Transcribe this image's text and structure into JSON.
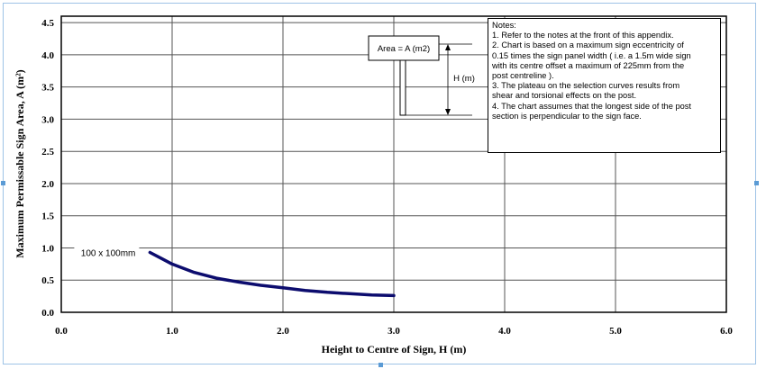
{
  "chart_data": {
    "type": "line",
    "xlabel": "Height to Centre of Sign, H (m)",
    "ylabel": "Maximum Permissable Sign Area, A (m²)",
    "xlim": [
      0,
      6
    ],
    "ylim": [
      0,
      4.6
    ],
    "x_ticks": [
      "0.0",
      "1.0",
      "2.0",
      "3.0",
      "4.0",
      "5.0",
      "6.0"
    ],
    "y_ticks": [
      "0.0",
      "0.5",
      "1.0",
      "1.5",
      "2.0",
      "2.5",
      "3.0",
      "3.5",
      "4.0",
      "4.5"
    ],
    "grid": true,
    "series": [
      {
        "name": "100 x 100mm",
        "color": "#0c0c6e",
        "x": [
          0.8,
          0.9,
          1.0,
          1.2,
          1.4,
          1.6,
          1.8,
          2.0,
          2.2,
          2.4,
          2.6,
          2.8,
          3.0
        ],
        "y": [
          0.93,
          0.84,
          0.75,
          0.62,
          0.53,
          0.47,
          0.42,
          0.38,
          0.34,
          0.31,
          0.29,
          0.27,
          0.26
        ]
      }
    ]
  },
  "diagram": {
    "area_label": "Area = A (m2)",
    "height_label": "H (m)"
  },
  "notes": {
    "title": "Notes:",
    "lines": [
      "1. Refer to the notes at the front of this appendix.",
      "2. Chart is based on a maximum sign eccentricity of",
      "0.15 times the sign panel width ( i.e. a 1.5m wide sign",
      "with its centre offset a maximum of 225mm from the",
      "post centreline ).",
      "3.  The plateau on the selection curves results from",
      "shear and torsional effects on the post.",
      "4.  The chart assumes that the longest side of the post",
      "section is perpendicular to the sign face."
    ]
  }
}
